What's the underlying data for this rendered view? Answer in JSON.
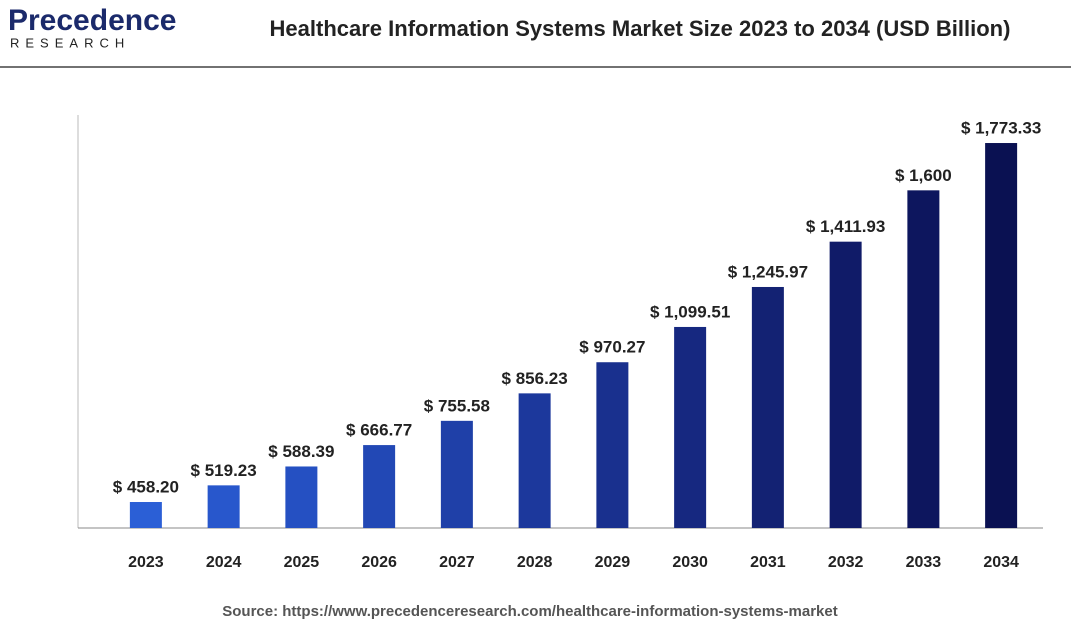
{
  "logo": {
    "name": "Precedence",
    "tagline": "RESEARCH"
  },
  "source": "Source: https://www.precedenceresearch.com/healthcare-information-systems-market",
  "chart_data": {
    "type": "bar",
    "title": "Healthcare Information Systems Market Size 2023 to 2034 (USD Billion)",
    "categories": [
      "2023",
      "2024",
      "2025",
      "2026",
      "2027",
      "2028",
      "2029",
      "2030",
      "2031",
      "2032",
      "2033",
      "2034"
    ],
    "values": [
      458.2,
      519.23,
      588.39,
      666.77,
      755.58,
      856.23,
      970.27,
      1099.51,
      1245.97,
      1411.93,
      1600,
      1773.33
    ],
    "value_labels": [
      "$ 458.20",
      "$ 519.23",
      "$ 588.39",
      "$ 666.77",
      "$ 755.58",
      "$ 856.23",
      "$ 970.27",
      "$ 1,099.51",
      "$ 1,245.97",
      "$ 1,411.93",
      "$ 1,600",
      "$ 1,773.33"
    ],
    "colors": [
      "#2b5fd6",
      "#2857cc",
      "#2550c2",
      "#2248b5",
      "#1f40a8",
      "#1c389c",
      "#19308e",
      "#162880",
      "#132273",
      "#101b68",
      "#0d165e",
      "#0a1152"
    ],
    "ylim": [
      363,
      1876
    ]
  }
}
